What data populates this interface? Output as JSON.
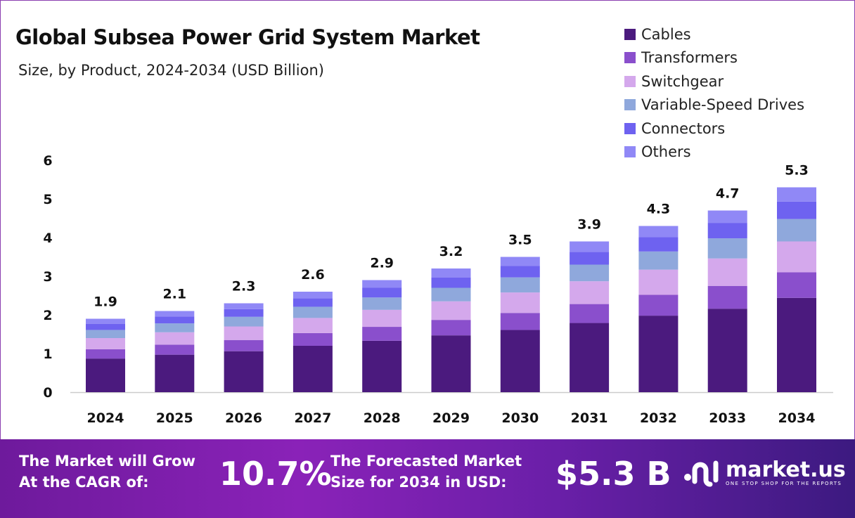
{
  "chart_data": {
    "type": "bar",
    "stacked": true,
    "title": "Global Subsea Power Grid System Market",
    "subtitle": "Size, by Product, 2024-2034 (USD Billion)",
    "xlabel": "",
    "ylabel": "",
    "ylim": [
      0,
      6
    ],
    "yticks": [
      "0",
      "1",
      "2",
      "3",
      "4",
      "5",
      "6"
    ],
    "grid": false,
    "legend_position": "top-right",
    "categories": [
      "2024",
      "2025",
      "2026",
      "2027",
      "2028",
      "2029",
      "2030",
      "2031",
      "2032",
      "2033",
      "2034"
    ],
    "totals": [
      "1.9",
      "2.1",
      "2.3",
      "2.6",
      "2.9",
      "3.2",
      "3.5",
      "3.9",
      "4.3",
      "4.7",
      "5.3"
    ],
    "series": [
      {
        "name": "Cables",
        "color": "#4b1a7e",
        "values": [
          0.87,
          0.97,
          1.06,
          1.2,
          1.33,
          1.47,
          1.61,
          1.79,
          1.98,
          2.16,
          2.44
        ]
      },
      {
        "name": "Transformers",
        "color": "#8a4fcc",
        "values": [
          0.24,
          0.26,
          0.29,
          0.33,
          0.36,
          0.4,
          0.44,
          0.49,
          0.54,
          0.59,
          0.66
        ]
      },
      {
        "name": "Switchgear",
        "color": "#d4a8ec",
        "values": [
          0.29,
          0.32,
          0.35,
          0.39,
          0.44,
          0.48,
          0.53,
          0.59,
          0.65,
          0.71,
          0.8
        ]
      },
      {
        "name": "Variable-Speed Drives",
        "color": "#8fa8dc",
        "values": [
          0.21,
          0.23,
          0.25,
          0.29,
          0.32,
          0.35,
          0.39,
          0.43,
          0.47,
          0.52,
          0.58
        ]
      },
      {
        "name": "Connectors",
        "color": "#6e62f0",
        "values": [
          0.16,
          0.18,
          0.2,
          0.22,
          0.25,
          0.27,
          0.3,
          0.33,
          0.37,
          0.4,
          0.45
        ]
      },
      {
        "name": "Others",
        "color": "#9088f6",
        "values": [
          0.13,
          0.14,
          0.15,
          0.17,
          0.2,
          0.23,
          0.23,
          0.27,
          0.29,
          0.32,
          0.37
        ]
      }
    ]
  },
  "footer": {
    "cagr_label_1": "The Market will Grow",
    "cagr_label_2": "At the CAGR of:",
    "cagr_value": "10.7%",
    "forecast_label_1": "The Forecasted Market",
    "forecast_label_2": "Size for 2034 in USD:",
    "forecast_value": "$5.3 B",
    "logo_name": "market.us",
    "logo_tagline": "ONE STOP SHOP FOR THE REPORTS"
  }
}
